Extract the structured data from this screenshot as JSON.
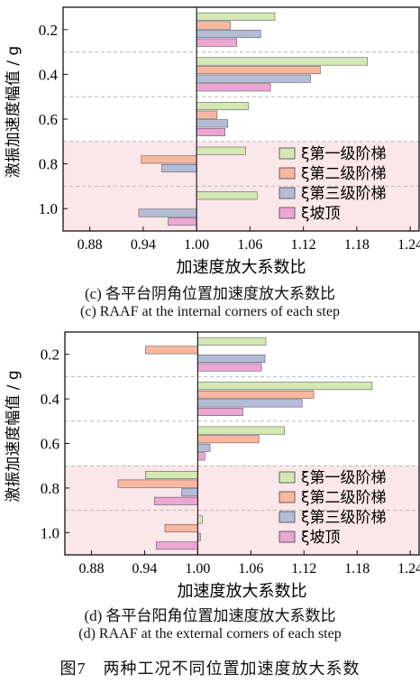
{
  "colors": {
    "step1": "#d4e8b4",
    "step2": "#f8b8a0",
    "step3": "#b4bcd8",
    "slope": "#eca6d4",
    "shade": "#fbe6ea",
    "grid": "#b8b8b8"
  },
  "figure_caption": "图7　两种工况不同位置加速度放大系数",
  "chart_data": [
    {
      "type": "bar",
      "orientation": "horizontal",
      "caption_zh": "(c) 各平台阴角位置加速度放大系数比",
      "caption_en": "(c) RAAF at the internal corners of each step",
      "xlabel": "加速度放大系数比",
      "ylabel": "激振加速度幅值 / g",
      "xlim": [
        0.85,
        1.25
      ],
      "baseline": 1.0,
      "xticks": [
        "0.88",
        "0.94",
        "1.00",
        "1.06",
        "1.12",
        "1.18",
        "1.24"
      ],
      "categories": [
        "0.2",
        "0.4",
        "0.6",
        "0.8",
        "1.0"
      ],
      "shaded_from_category": "0.8",
      "grid": "dashed horizontal separators",
      "legend_position": "bottom-right",
      "series": [
        {
          "name": "ξ第一级阶梯",
          "values": [
            1.088,
            1.192,
            1.058,
            1.055,
            1.068
          ]
        },
        {
          "name": "ξ第二级阶梯",
          "values": [
            1.038,
            1.139,
            1.023,
            0.938,
            null
          ]
        },
        {
          "name": "ξ第三级阶梯",
          "values": [
            1.072,
            1.128,
            1.035,
            0.961,
            0.935
          ]
        },
        {
          "name": "ξ坡顶",
          "values": [
            1.045,
            1.083,
            1.032,
            null,
            0.968
          ]
        }
      ]
    },
    {
      "type": "bar",
      "orientation": "horizontal",
      "caption_zh": "(d) 各平台阳角位置加速度放大系数比",
      "caption_en": "(d) RAAF at the external corners of each step",
      "xlabel": "加速度放大系数比",
      "ylabel": "激振加速度幅值 / g",
      "xlim": [
        0.85,
        1.25
      ],
      "baseline": 1.0,
      "xticks": [
        "0.88",
        "0.94",
        "1.00",
        "1.06",
        "1.12",
        "1.18",
        "1.24"
      ],
      "categories": [
        "0.2",
        "0.4",
        "0.6",
        "0.8",
        "1.0"
      ],
      "shaded_from_category": "0.8",
      "grid": "dashed horizontal separators",
      "legend_position": "bottom-right",
      "series": [
        {
          "name": "ξ第一级阶梯",
          "values": [
            1.077,
            1.197,
            1.098,
            0.941,
            1.005
          ]
        },
        {
          "name": "ξ第二级阶梯",
          "values": [
            0.941,
            1.131,
            1.069,
            0.91,
            0.963
          ]
        },
        {
          "name": "ξ第三级阶梯",
          "values": [
            1.076,
            1.118,
            1.014,
            0.982,
            1.003
          ]
        },
        {
          "name": "ξ坡顶",
          "values": [
            1.072,
            1.051,
            1.008,
            0.951,
            0.953
          ]
        }
      ]
    }
  ]
}
